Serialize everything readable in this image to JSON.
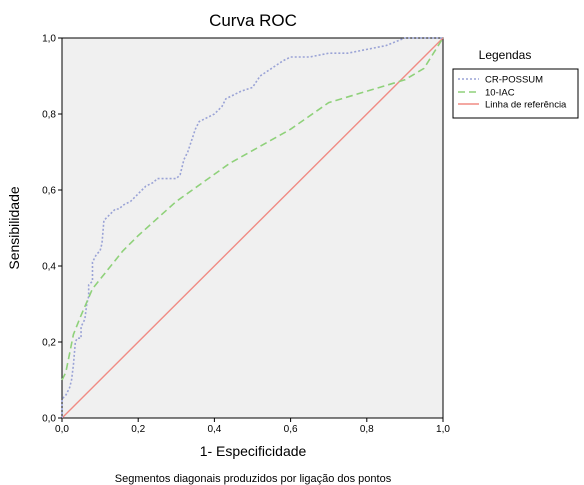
{
  "chart_data": {
    "type": "line",
    "title": "Curva ROC",
    "xlabel": "1- Especificidade",
    "ylabel": "Sensibilidade",
    "footnote": "Segmentos diagonais produzidos por ligação dos pontos",
    "xlim": [
      0,
      1
    ],
    "ylim": [
      0,
      1
    ],
    "x_ticks": [
      "0,0",
      "0,2",
      "0,4",
      "0,6",
      "0,8",
      "1,0"
    ],
    "y_ticks": [
      "0,0",
      "0,2",
      "0,4",
      "0,6",
      "0,8",
      "1,0"
    ],
    "grid": false,
    "plot_background": "#f0f0f0",
    "legend": {
      "title": "Legendas",
      "position": "right",
      "entries": [
        "CR-POSSUM",
        "10-IAC",
        "Linha de referência"
      ]
    },
    "series": [
      {
        "name": "CR-POSSUM",
        "color": "#9aa3d6",
        "style": "dotted",
        "points": [
          [
            0,
            0
          ],
          [
            0,
            0.05
          ],
          [
            0.01,
            0.06
          ],
          [
            0.02,
            0.08
          ],
          [
            0.025,
            0.1
          ],
          [
            0.03,
            0.14
          ],
          [
            0.035,
            0.2
          ],
          [
            0.04,
            0.21
          ],
          [
            0.05,
            0.21
          ],
          [
            0.05,
            0.24
          ],
          [
            0.06,
            0.26
          ],
          [
            0.065,
            0.3
          ],
          [
            0.07,
            0.32
          ],
          [
            0.07,
            0.35
          ],
          [
            0.08,
            0.36
          ],
          [
            0.08,
            0.41
          ],
          [
            0.09,
            0.43
          ],
          [
            0.1,
            0.44
          ],
          [
            0.105,
            0.46
          ],
          [
            0.11,
            0.52
          ],
          [
            0.12,
            0.53
          ],
          [
            0.13,
            0.54
          ],
          [
            0.14,
            0.55
          ],
          [
            0.15,
            0.55
          ],
          [
            0.16,
            0.56
          ],
          [
            0.18,
            0.57
          ],
          [
            0.19,
            0.58
          ],
          [
            0.2,
            0.59
          ],
          [
            0.21,
            0.6
          ],
          [
            0.22,
            0.61
          ],
          [
            0.24,
            0.62
          ],
          [
            0.25,
            0.63
          ],
          [
            0.27,
            0.63
          ],
          [
            0.3,
            0.63
          ],
          [
            0.31,
            0.64
          ],
          [
            0.32,
            0.68
          ],
          [
            0.33,
            0.7
          ],
          [
            0.34,
            0.73
          ],
          [
            0.35,
            0.76
          ],
          [
            0.36,
            0.78
          ],
          [
            0.38,
            0.79
          ],
          [
            0.4,
            0.8
          ],
          [
            0.42,
            0.82
          ],
          [
            0.43,
            0.84
          ],
          [
            0.45,
            0.85
          ],
          [
            0.47,
            0.86
          ],
          [
            0.5,
            0.87
          ],
          [
            0.52,
            0.9
          ],
          [
            0.55,
            0.92
          ],
          [
            0.58,
            0.94
          ],
          [
            0.6,
            0.95
          ],
          [
            0.65,
            0.95
          ],
          [
            0.7,
            0.96
          ],
          [
            0.75,
            0.96
          ],
          [
            0.8,
            0.97
          ],
          [
            0.85,
            0.98
          ],
          [
            0.9,
            1.0
          ],
          [
            1.0,
            1.0
          ]
        ]
      },
      {
        "name": "10-IAC",
        "color": "#8fd17a",
        "style": "dashed",
        "points": [
          [
            0,
            0.1
          ],
          [
            0.01,
            0.12
          ],
          [
            0.03,
            0.22
          ],
          [
            0.05,
            0.27
          ],
          [
            0.08,
            0.34
          ],
          [
            0.12,
            0.39
          ],
          [
            0.16,
            0.44
          ],
          [
            0.2,
            0.48
          ],
          [
            0.3,
            0.57
          ],
          [
            0.44,
            0.67
          ],
          [
            0.6,
            0.76
          ],
          [
            0.7,
            0.83
          ],
          [
            0.8,
            0.86
          ],
          [
            0.9,
            0.89
          ],
          [
            0.95,
            0.92
          ],
          [
            1.0,
            1.0
          ]
        ]
      },
      {
        "name": "Linha de referência",
        "color": "#f08b84",
        "style": "solid",
        "points": [
          [
            0,
            0
          ],
          [
            1,
            1
          ]
        ]
      }
    ]
  }
}
